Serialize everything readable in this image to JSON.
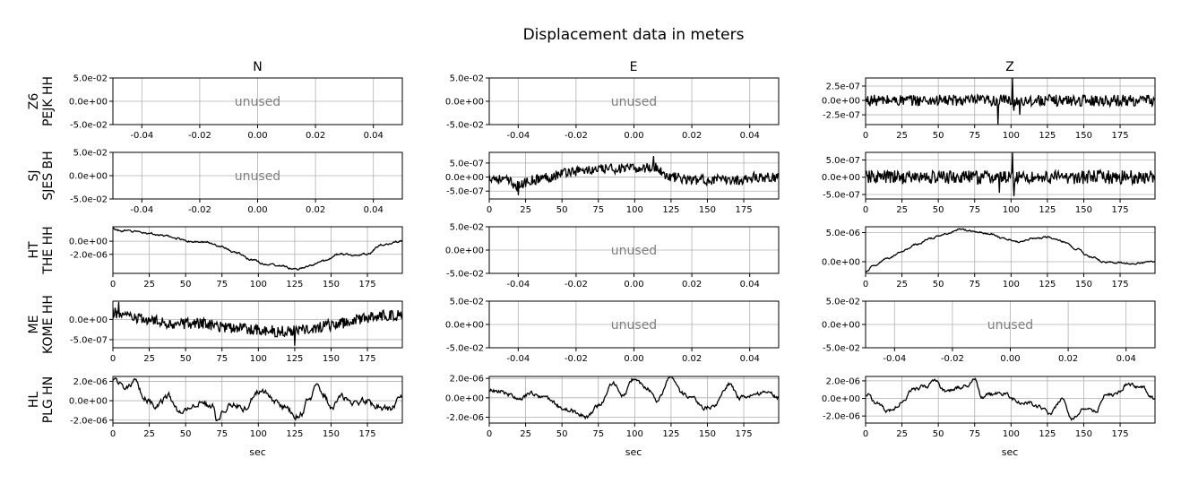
{
  "figure": {
    "title": "Displacement data in meters",
    "column_titles": [
      "N",
      "E",
      "Z"
    ],
    "row_labels": [
      [
        "Z6",
        "PEJK HH"
      ],
      [
        "SJ",
        "SJES BH"
      ],
      [
        "HT",
        "THE HH"
      ],
      [
        "ME",
        "KOME HH"
      ],
      [
        "HL",
        "PLG HN"
      ]
    ],
    "xlabel": "sec",
    "unused_text": "unused",
    "colors": {
      "trace": "#000000",
      "grid": "#b0b0b0",
      "unused_text": "#808080"
    }
  },
  "chart_data": [
    {
      "row": 0,
      "col": 0,
      "type": "line",
      "unused": true,
      "xlim": [
        -0.05,
        0.05
      ],
      "ylim": [
        -0.05,
        0.05
      ],
      "xticks": [
        -0.04,
        -0.02,
        0.0,
        0.02,
        0.04
      ],
      "xticklabels": [
        "-0.04",
        "-0.02",
        "0.00",
        "0.02",
        "0.04"
      ],
      "yticks": [
        0.05,
        0.0,
        -0.05
      ],
      "yticklabels": [
        "5.0e-02",
        "0.0e+00",
        "-5.0e-02"
      ],
      "xlabel": "",
      "grid": true
    },
    {
      "row": 0,
      "col": 1,
      "type": "line",
      "unused": true,
      "xlim": [
        -0.05,
        0.05
      ],
      "ylim": [
        -0.05,
        0.05
      ],
      "xticks": [
        -0.04,
        -0.02,
        0.0,
        0.02,
        0.04
      ],
      "xticklabels": [
        "-0.04",
        "-0.02",
        "0.00",
        "0.02",
        "0.04"
      ],
      "yticks": [
        0.05,
        0.0,
        -0.05
      ],
      "yticklabels": [
        "5.0e-02",
        "0.0e+00",
        "-5.0e-02"
      ],
      "xlabel": "",
      "grid": true
    },
    {
      "row": 0,
      "col": 2,
      "type": "line",
      "unused": false,
      "xlim": [
        0,
        199
      ],
      "ylim": [
        -4.2e-07,
        3.9e-07
      ],
      "xticks": [
        0,
        25,
        50,
        75,
        100,
        125,
        150,
        175
      ],
      "xticklabels": [
        "0",
        "25",
        "50",
        "75",
        "100",
        "125",
        "150",
        "175"
      ],
      "yticks": [
        2.5e-07,
        0.0,
        -2.5e-07
      ],
      "yticklabels": [
        "2.5e-07",
        "0.0e+00",
        "-2.5e-07"
      ],
      "xlabel": "",
      "grid": true,
      "series": [
        {
          "style": "noise",
          "noise": 1e-07,
          "spikes": [
            [
              91,
              -4.2e-07
            ],
            [
              101,
              3.9e-07
            ],
            [
              102,
              -1.8e-07
            ],
            [
              106,
              -2.5e-07
            ]
          ],
          "x": [
            0,
            25,
            50,
            75,
            100,
            125,
            150,
            175,
            199
          ],
          "y": [
            0,
            0,
            0,
            0,
            0,
            0,
            0,
            0,
            0
          ]
        }
      ]
    },
    {
      "row": 1,
      "col": 0,
      "type": "line",
      "unused": true,
      "xlim": [
        -0.05,
        0.05
      ],
      "ylim": [
        -0.05,
        0.05
      ],
      "xticks": [
        -0.04,
        -0.02,
        0.0,
        0.02,
        0.04
      ],
      "xticklabels": [
        "-0.04",
        "-0.02",
        "0.00",
        "0.02",
        "0.04"
      ],
      "yticks": [
        0.05,
        0.0,
        -0.05
      ],
      "yticklabels": [
        "5.0e-02",
        "0.0e+00",
        "-5.0e-02"
      ],
      "xlabel": "",
      "grid": true
    },
    {
      "row": 1,
      "col": 1,
      "type": "line",
      "unused": false,
      "xlim": [
        0,
        199
      ],
      "ylim": [
        -7.8e-07,
        8.8e-07
      ],
      "xticks": [
        0,
        25,
        50,
        75,
        100,
        125,
        150,
        175
      ],
      "xticklabels": [
        "0",
        "25",
        "50",
        "75",
        "100",
        "125",
        "150",
        "175"
      ],
      "yticks": [
        5e-07,
        0.0,
        -5e-07
      ],
      "yticklabels": [
        "5.0e-07",
        "0.0e+00",
        "-5.0e-07"
      ],
      "xlabel": "",
      "grid": true,
      "series": [
        {
          "style": "noise",
          "noise": 1.8e-07,
          "spikes": [
            [
              20,
              -6.5e-07
            ],
            [
              113,
              7.5e-07
            ]
          ],
          "x": [
            0,
            10,
            20,
            30,
            40,
            55,
            70,
            85,
            100,
            113,
            125,
            140,
            155,
            170,
            185,
            199
          ],
          "y": [
            0,
            -1e-07,
            -3e-07,
            -1e-07,
            0,
            2e-07,
            2.5e-07,
            3e-07,
            3e-07,
            3.5e-07,
            0,
            -1e-07,
            -1e-07,
            -1e-07,
            0,
            0
          ]
        }
      ]
    },
    {
      "row": 1,
      "col": 2,
      "type": "line",
      "unused": false,
      "xlim": [
        0,
        199
      ],
      "ylim": [
        -6.3e-07,
        7.2e-07
      ],
      "xticks": [
        0,
        25,
        50,
        75,
        100,
        125,
        150,
        175
      ],
      "xticklabels": [
        "0",
        "25",
        "50",
        "75",
        "100",
        "125",
        "150",
        "175"
      ],
      "yticks": [
        5e-07,
        0.0,
        -5e-07
      ],
      "yticklabels": [
        "5.0e-07",
        "0.0e+00",
        "-5.0e-07"
      ],
      "xlabel": "",
      "grid": true,
      "series": [
        {
          "style": "noise",
          "noise": 2e-07,
          "spikes": [
            [
              101,
              7.2e-07
            ],
            [
              102,
              -5.5e-07
            ],
            [
              92,
              -4.5e-07
            ]
          ],
          "x": [
            0,
            25,
            50,
            75,
            100,
            125,
            150,
            175,
            199
          ],
          "y": [
            0,
            0,
            0,
            0,
            0,
            0,
            0,
            0,
            0
          ]
        }
      ]
    },
    {
      "row": 2,
      "col": 0,
      "type": "line",
      "unused": false,
      "xlim": [
        0,
        199
      ],
      "ylim": [
        -4.9e-06,
        2.2e-06
      ],
      "xticks": [
        0,
        25,
        50,
        75,
        100,
        125,
        150,
        175
      ],
      "xticklabels": [
        "0",
        "25",
        "50",
        "75",
        "100",
        "125",
        "150",
        "175"
      ],
      "yticks": [
        0.0,
        -2e-06
      ],
      "yticklabels": [
        "0.0e+00",
        "-2.0e-06"
      ],
      "xlabel": "",
      "grid": true,
      "series": [
        {
          "style": "smooth",
          "noise": 1.2e-07,
          "x": [
            0,
            5,
            15,
            25,
            35,
            45,
            55,
            65,
            75,
            85,
            95,
            105,
            115,
            125,
            135,
            145,
            155,
            165,
            175,
            185,
            199
          ],
          "y": [
            1.9e-06,
            1.6e-06,
            1.5e-06,
            1.2e-06,
            8e-07,
            4e-07,
            -1e-07,
            -2e-07,
            -8e-07,
            -1.8e-06,
            -2.8e-06,
            -3.5e-06,
            -3.7e-06,
            -4.3e-06,
            -3.8e-06,
            -3e-06,
            -2e-06,
            -2.1e-06,
            -1.9e-06,
            -5e-07,
            0.0
          ]
        }
      ]
    },
    {
      "row": 2,
      "col": 1,
      "type": "line",
      "unused": true,
      "xlim": [
        -0.05,
        0.05
      ],
      "ylim": [
        -0.05,
        0.05
      ],
      "xticks": [
        -0.04,
        -0.02,
        0.0,
        0.02,
        0.04
      ],
      "xticklabels": [
        "-0.04",
        "-0.02",
        "0.00",
        "0.02",
        "0.04"
      ],
      "yticks": [
        0.05,
        0.0,
        -0.05
      ],
      "yticklabels": [
        "5.0e-02",
        "0.0e+00",
        "-5.0e-02"
      ],
      "xlabel": "",
      "grid": true
    },
    {
      "row": 2,
      "col": 2,
      "type": "line",
      "unused": false,
      "xlim": [
        0,
        199
      ],
      "ylim": [
        -2e-06,
        6e-06
      ],
      "xticks": [
        0,
        25,
        50,
        75,
        100,
        125,
        150,
        175
      ],
      "xticklabels": [
        "0",
        "25",
        "50",
        "75",
        "100",
        "125",
        "150",
        "175"
      ],
      "yticks": [
        5e-06,
        0.0
      ],
      "yticklabels": [
        "5.0e-06",
        "0.0e+00"
      ],
      "xlabel": "",
      "grid": true,
      "series": [
        {
          "style": "smooth",
          "noise": 1.2e-07,
          "x": [
            0,
            5,
            15,
            25,
            35,
            45,
            55,
            65,
            75,
            85,
            95,
            105,
            115,
            125,
            135,
            145,
            155,
            165,
            175,
            185,
            199
          ],
          "y": [
            -1.8e-06,
            -8e-07,
            5e-07,
            1.8e-06,
            3e-06,
            4e-06,
            4.8e-06,
            5.6e-06,
            5.2e-06,
            4.8e-06,
            4e-06,
            3.4e-06,
            4e-06,
            4.2e-06,
            3.5e-06,
            2.2e-06,
            8e-07,
            -1e-07,
            -2e-07,
            -3e-07,
            0.0
          ]
        }
      ]
    },
    {
      "row": 3,
      "col": 0,
      "type": "line",
      "unused": false,
      "xlim": [
        0,
        199
      ],
      "ylim": [
        -7e-07,
        4.5e-07
      ],
      "xticks": [
        0,
        25,
        50,
        75,
        100,
        125,
        150,
        175
      ],
      "xticklabels": [
        "0",
        "25",
        "50",
        "75",
        "100",
        "125",
        "150",
        "175"
      ],
      "yticks": [
        0.0,
        -5e-07
      ],
      "yticklabels": [
        "0.0e+00",
        "-5.0e-07"
      ],
      "xlabel": "",
      "grid": true,
      "series": [
        {
          "style": "noise",
          "noise": 1.4e-07,
          "spikes": [
            [
              4,
              4.3e-07
            ],
            [
              125,
              -6.5e-07
            ]
          ],
          "x": [
            0,
            20,
            40,
            60,
            80,
            100,
            115,
            130,
            150,
            170,
            185,
            199
          ],
          "y": [
            1.5e-07,
            0,
            -1e-07,
            -1e-07,
            -2e-07,
            -2.5e-07,
            -3e-07,
            -2.5e-07,
            -1.5e-07,
            0,
            1e-07,
            1e-07
          ]
        }
      ]
    },
    {
      "row": 3,
      "col": 1,
      "type": "line",
      "unused": true,
      "xlim": [
        -0.05,
        0.05
      ],
      "ylim": [
        -0.05,
        0.05
      ],
      "xticks": [
        -0.04,
        -0.02,
        0.0,
        0.02,
        0.04
      ],
      "xticklabels": [
        "-0.04",
        "-0.02",
        "0.00",
        "0.02",
        "0.04"
      ],
      "yticks": [
        0.05,
        0.0,
        -0.05
      ],
      "yticklabels": [
        "5.0e-02",
        "0.0e+00",
        "-5.0e-02"
      ],
      "xlabel": "",
      "grid": true
    },
    {
      "row": 3,
      "col": 2,
      "type": "line",
      "unused": true,
      "xlim": [
        -0.05,
        0.05
      ],
      "ylim": [
        -0.05,
        0.05
      ],
      "xticks": [
        -0.04,
        -0.02,
        0.0,
        0.02,
        0.04
      ],
      "xticklabels": [
        "-0.04",
        "-0.02",
        "0.00",
        "0.02",
        "0.04"
      ],
      "yticks": [
        0.05,
        0.0,
        -0.05
      ],
      "yticklabels": [
        "5.0e-02",
        "0.0e+00",
        "-5.0e-02"
      ],
      "xlabel": "",
      "grid": true
    },
    {
      "row": 4,
      "col": 0,
      "type": "line",
      "unused": false,
      "xlim": [
        0,
        199
      ],
      "ylim": [
        -2.3e-06,
        2.5e-06
      ],
      "xticks": [
        0,
        25,
        50,
        75,
        100,
        125,
        150,
        175
      ],
      "xticklabels": [
        "0",
        "25",
        "50",
        "75",
        "100",
        "125",
        "150",
        "175"
      ],
      "yticks": [
        2e-06,
        0.0,
        -2e-06
      ],
      "yticklabels": [
        "2.0e-06",
        "0.0e+00",
        "-2.0e-06"
      ],
      "xlabel": "sec",
      "grid": true,
      "series": [
        {
          "style": "smooth",
          "noise": 2.5e-07,
          "x": [
            0,
            8,
            15,
            22,
            30,
            38,
            45,
            52,
            60,
            68,
            72,
            76,
            82,
            90,
            100,
            105,
            112,
            120,
            125,
            130,
            135,
            140,
            145,
            150,
            158,
            165,
            172,
            180,
            190,
            199
          ],
          "y": [
            2.3e-06,
            1.5e-06,
            1.8e-06,
            2e-07,
            -5e-07,
            5e-07,
            -1e-06,
            -8e-07,
            -2e-07,
            -5e-07,
            -2e-06,
            -8e-07,
            -3e-07,
            -8e-07,
            1e-06,
            8e-07,
            -2e-07,
            -8e-07,
            -1.6e-06,
            -1.2e-06,
            2e-07,
            1.5e-06,
            6e-07,
            -6e-07,
            3e-07,
            -4e-07,
            0.0,
            -5e-07,
            -9e-07,
            5e-07
          ]
        }
      ]
    },
    {
      "row": 4,
      "col": 1,
      "type": "line",
      "unused": false,
      "xlim": [
        0,
        199
      ],
      "ylim": [
        -2.6e-06,
        2.2e-06
      ],
      "xticks": [
        0,
        25,
        50,
        75,
        100,
        125,
        150,
        175
      ],
      "xticklabels": [
        "0",
        "25",
        "50",
        "75",
        "100",
        "125",
        "150",
        "175"
      ],
      "yticks": [
        2e-06,
        0.0,
        -2e-06
      ],
      "yticklabels": [
        "2.0e-06",
        "0.0e+00",
        "-2.0e-06"
      ],
      "xlabel": "sec",
      "grid": true,
      "series": [
        {
          "style": "smooth",
          "noise": 1.8e-07,
          "x": [
            0,
            10,
            20,
            30,
            40,
            50,
            60,
            67,
            75,
            85,
            92,
            100,
            108,
            115,
            125,
            132,
            140,
            148,
            155,
            165,
            172,
            180,
            190,
            199
          ],
          "y": [
            8e-07,
            6e-07,
            -2e-07,
            5e-07,
            -2e-07,
            -1e-06,
            -1.5e-06,
            -2e-06,
            -8e-07,
            1.5e-06,
            3e-07,
            2e-06,
            1e-06,
            -3e-07,
            2e-06,
            5e-07,
            0.0,
            -1e-06,
            -8e-07,
            1.4e-06,
            0.0,
            3e-07,
            6e-07,
            0.0
          ]
        }
      ]
    },
    {
      "row": 4,
      "col": 2,
      "type": "line",
      "unused": false,
      "xlim": [
        0,
        199
      ],
      "ylim": [
        -2.8e-06,
        2.5e-06
      ],
      "xticks": [
        0,
        25,
        50,
        75,
        100,
        125,
        150,
        175
      ],
      "xticklabels": [
        "0",
        "25",
        "50",
        "75",
        "100",
        "125",
        "150",
        "175"
      ],
      "yticks": [
        2e-06,
        0.0,
        -2e-06
      ],
      "yticklabels": [
        "2.0e-06",
        "0.0e+00",
        "-2.0e-06"
      ],
      "xlabel": "sec",
      "grid": true,
      "series": [
        {
          "style": "smooth",
          "noise": 1.8e-07,
          "x": [
            0,
            8,
            16,
            25,
            32,
            40,
            48,
            55,
            62,
            70,
            75,
            80,
            85,
            95,
            105,
            112,
            120,
            127,
            135,
            142,
            150,
            158,
            165,
            172,
            180,
            190,
            199
          ],
          "y": [
            5e-07,
            -5e-07,
            -1.5e-06,
            -5e-07,
            1e-06,
            1.3e-06,
            2e-06,
            8e-07,
            1.2e-06,
            1.5e-06,
            2.3e-06,
            2e-07,
            5e-07,
            6e-07,
            -3e-07,
            -5e-07,
            -1e-06,
            -1.8e-06,
            0.0,
            -2.5e-06,
            -1e-06,
            -1.5e-06,
            3e-07,
            5e-07,
            1.6e-06,
            1.3e-06,
            0.0
          ]
        }
      ]
    }
  ]
}
